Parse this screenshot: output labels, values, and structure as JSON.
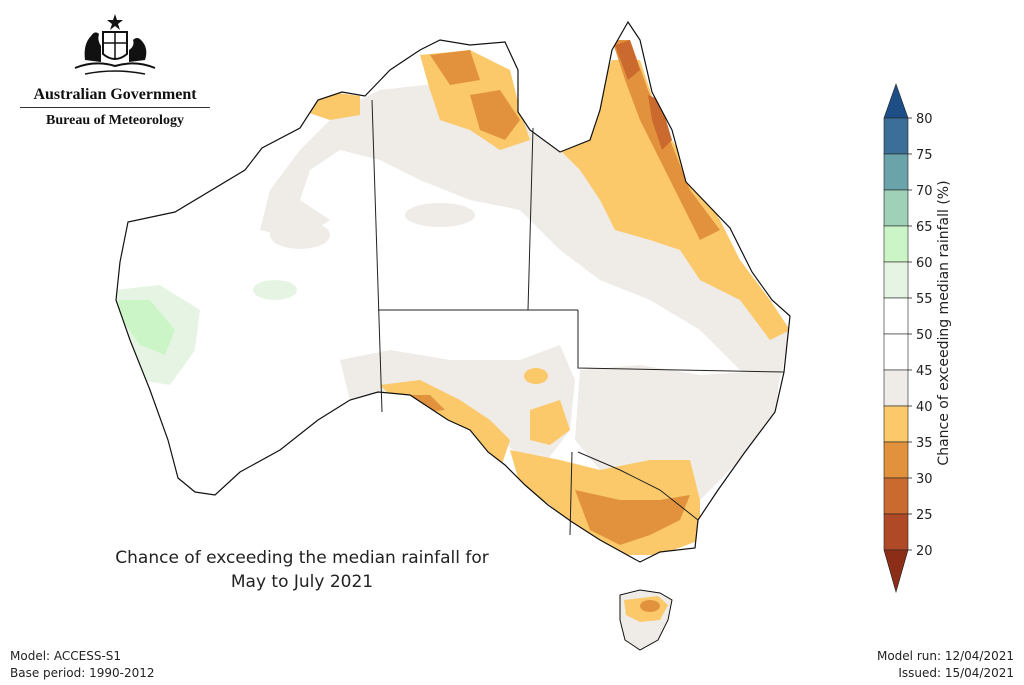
{
  "header": {
    "organisation": "Australian Government",
    "agency": "Bureau of Meteorology",
    "logo_icon": "commonwealth-coat-of-arms-icon"
  },
  "map": {
    "title_line1": "Chance of exceeding the median rainfall for",
    "title_line2": "May to July 2021",
    "region": "Australia"
  },
  "legend": {
    "label": "Chance of exceeding median rainfall (%)",
    "ticks": [
      "80",
      "75",
      "70",
      "65",
      "60",
      "55",
      "50",
      "45",
      "40",
      "35",
      "30",
      "25",
      "20"
    ],
    "colors": {
      "above_80": "#1d4f86",
      "75_80": "#3b6f9a",
      "70_75": "#6aa3a9",
      "65_70": "#9ed1b8",
      "60_65": "#ccf5c7",
      "55_60": "#e6f5e3",
      "50_55": "#ffffff",
      "45_50": "#ffffff",
      "40_45": "#efebe6",
      "35_40": "#fbc86a",
      "30_35": "#e2923d",
      "25_30": "#cb6a2f",
      "20_25": "#b04a26",
      "below_20": "#8b2d17"
    }
  },
  "footer": {
    "model": "Model: ACCESS-S1",
    "base_period": "Base period: 1990-2012",
    "model_run": "Model run: 12/04/2021",
    "issued": "Issued: 15/04/2021"
  }
}
